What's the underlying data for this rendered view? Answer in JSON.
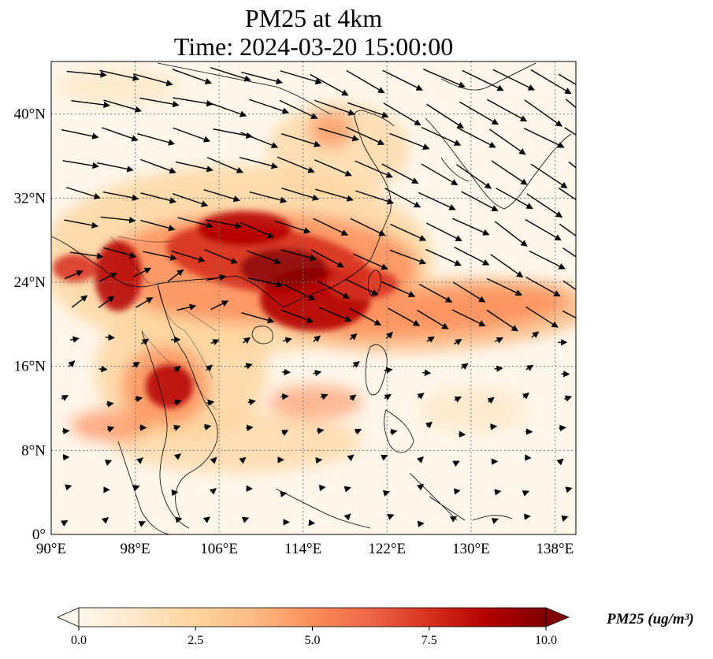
{
  "title_line1": "PM25 at 4km",
  "title_line2": "Time: 2024-03-20 15:00:00",
  "map": {
    "lon_range": [
      90,
      140
    ],
    "lat_range": [
      0,
      45
    ],
    "lon_ticks": [
      90,
      98,
      106,
      114,
      122,
      130,
      138
    ],
    "lon_tick_labels": [
      "90°E",
      "98°E",
      "106°E",
      "114°E",
      "122°E",
      "130°E",
      "138°E"
    ],
    "lat_ticks": [
      0,
      8,
      16,
      24,
      32,
      40
    ],
    "lat_tick_labels": [
      "0°",
      "8°N",
      "16°N",
      "24°N",
      "32°N",
      "40°N"
    ],
    "gridlines": true,
    "field": "PM25",
    "colormap": "OrRd",
    "colormap_colors": [
      "#fff7ec",
      "#fee8c8",
      "#fdd49e",
      "#fdbb84",
      "#fc8d59",
      "#ef6548",
      "#d7301f",
      "#b30000",
      "#7f0000"
    ],
    "wind_vectors": true
  },
  "colorbar": {
    "min": 0.0,
    "max": 10.0,
    "ticks": [
      "0.0",
      "2.5",
      "5.0",
      "7.5",
      "10.0"
    ],
    "extend": "both",
    "label": "PM25 (ug/m³)"
  }
}
